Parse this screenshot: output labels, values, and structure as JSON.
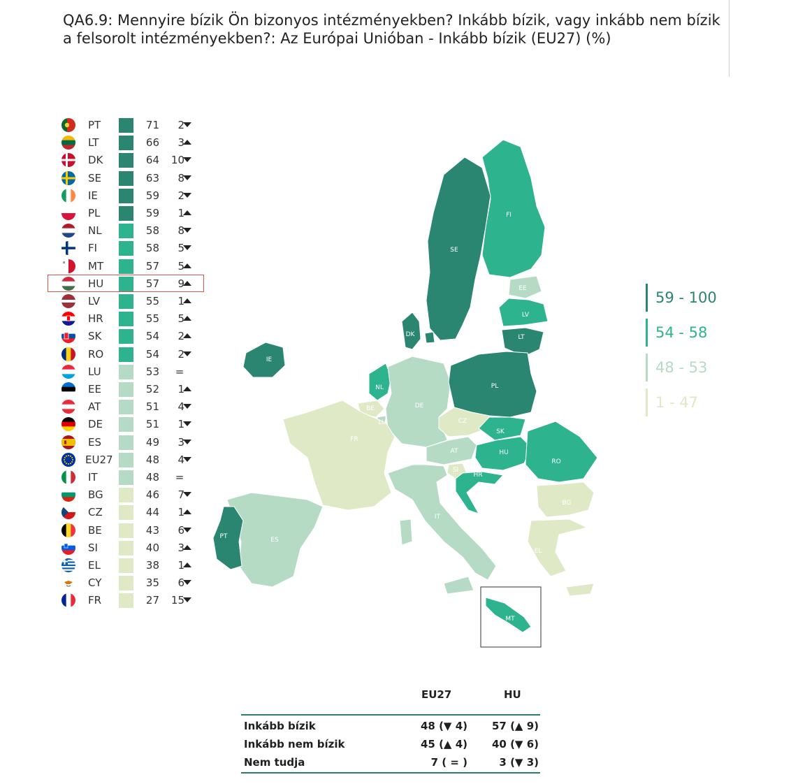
{
  "title": "QA6.9: Mennyire bízik Ön bizonyos intézményekben? Inkább bízik, vagy inkább nem bízik a felsorolt intézményekben?: Az Európai Unióban - Inkább bízik (EU27) (%)",
  "colors": {
    "c4": "#2a8571",
    "c3": "#2eb38f",
    "c2": "#b5dbc5",
    "c1": "#dfe9c6",
    "highlight": "#d9534f"
  },
  "rows": [
    {
      "code": "PT",
      "value": "71",
      "change": "2",
      "dir": "down",
      "class": "c4",
      "flag": "pt-flag"
    },
    {
      "code": "LT",
      "value": "66",
      "change": "3",
      "dir": "up",
      "class": "c4",
      "flag": "lt-flag"
    },
    {
      "code": "DK",
      "value": "64",
      "change": "10",
      "dir": "down",
      "class": "c4",
      "flag": "dk-flag"
    },
    {
      "code": "SE",
      "value": "63",
      "change": "8",
      "dir": "down",
      "class": "c4",
      "flag": "se-flag"
    },
    {
      "code": "IE",
      "value": "59",
      "change": "2",
      "dir": "down",
      "class": "c4",
      "flag": "ie-flag"
    },
    {
      "code": "PL",
      "value": "59",
      "change": "1",
      "dir": "up",
      "class": "c4",
      "flag": "pl-flag"
    },
    {
      "code": "NL",
      "value": "58",
      "change": "8",
      "dir": "down",
      "class": "c3",
      "flag": "nl-flag"
    },
    {
      "code": "FI",
      "value": "58",
      "change": "5",
      "dir": "down",
      "class": "c3",
      "flag": "fi-flag"
    },
    {
      "code": "MT",
      "value": "57",
      "change": "5",
      "dir": "up",
      "class": "c3",
      "flag": "mt-flag"
    },
    {
      "code": "HU",
      "value": "57",
      "change": "9",
      "dir": "up",
      "class": "c3",
      "flag": "hu-flag"
    },
    {
      "code": "LV",
      "value": "55",
      "change": "1",
      "dir": "up",
      "class": "c3",
      "flag": "lv-flag"
    },
    {
      "code": "HR",
      "value": "55",
      "change": "5",
      "dir": "up",
      "class": "c3",
      "flag": "hr-flag"
    },
    {
      "code": "SK",
      "value": "54",
      "change": "2",
      "dir": "up",
      "class": "c3",
      "flag": "sk-flag"
    },
    {
      "code": "RO",
      "value": "54",
      "change": "2",
      "dir": "down",
      "class": "c3",
      "flag": "ro-flag"
    },
    {
      "code": "LU",
      "value": "53",
      "change": "",
      "dir": "eq",
      "class": "c2",
      "flag": "lu-flag"
    },
    {
      "code": "EE",
      "value": "52",
      "change": "1",
      "dir": "up",
      "class": "c2",
      "flag": "ee-flag"
    },
    {
      "code": "AT",
      "value": "51",
      "change": "4",
      "dir": "down",
      "class": "c2",
      "flag": "at-flag"
    },
    {
      "code": "DE",
      "value": "51",
      "change": "1",
      "dir": "down",
      "class": "c2",
      "flag": "de-flag"
    },
    {
      "code": "ES",
      "value": "49",
      "change": "3",
      "dir": "down",
      "class": "c2",
      "flag": "es-flag"
    },
    {
      "code": "EU27",
      "value": "48",
      "change": "4",
      "dir": "down",
      "class": "c2",
      "flag": "eu-flag"
    },
    {
      "code": "IT",
      "value": "48",
      "change": "",
      "dir": "eq",
      "class": "c2",
      "flag": "it-flag"
    },
    {
      "code": "BG",
      "value": "46",
      "change": "7",
      "dir": "down",
      "class": "c1",
      "flag": "bg-flag"
    },
    {
      "code": "CZ",
      "value": "44",
      "change": "1",
      "dir": "up",
      "class": "c1",
      "flag": "cz-flag"
    },
    {
      "code": "BE",
      "value": "43",
      "change": "6",
      "dir": "down",
      "class": "c1",
      "flag": "be-flag"
    },
    {
      "code": "SI",
      "value": "40",
      "change": "3",
      "dir": "up",
      "class": "c1",
      "flag": "si-flag"
    },
    {
      "code": "EL",
      "value": "38",
      "change": "1",
      "dir": "up",
      "class": "c1",
      "flag": "el-flag"
    },
    {
      "code": "CY",
      "value": "35",
      "change": "6",
      "dir": "down",
      "class": "c1",
      "flag": "cy-flag"
    },
    {
      "code": "FR",
      "value": "27",
      "change": "15",
      "dir": "down",
      "class": "c1",
      "flag": "fr-flag"
    }
  ],
  "eq_symbol": "=",
  "highlighted_code": "HU",
  "scale": [
    {
      "label": "59 - 100",
      "class": "c4"
    },
    {
      "label": "54 - 58",
      "class": "c3"
    },
    {
      "label": "48 - 53",
      "class": "c2"
    },
    {
      "label": "1 - 47",
      "class": "c1"
    }
  ],
  "map_labels": [
    "FI",
    "SE",
    "EE",
    "LV",
    "LT",
    "DK",
    "IE",
    "NL",
    "BE",
    "LU",
    "DE",
    "PL",
    "CZ",
    "SK",
    "FR",
    "AT",
    "HU",
    "RO",
    "SI",
    "HR",
    "IT",
    "BG",
    "EL",
    "PT",
    "ES",
    "MT"
  ],
  "summary": {
    "col_eu": "EU27",
    "col_hu": "HU",
    "rows": [
      {
        "label": "Inkább bízik",
        "eu": "48 (▼ 4)",
        "hu": "57 (▲ 9)"
      },
      {
        "label": "Inkább nem bízik",
        "eu": "45 (▲ 4)",
        "hu": "40 (▼ 6)"
      },
      {
        "label": "Nem tudja",
        "eu": "7 ( = )",
        "hu": "3 (▼ 3)"
      }
    ]
  }
}
